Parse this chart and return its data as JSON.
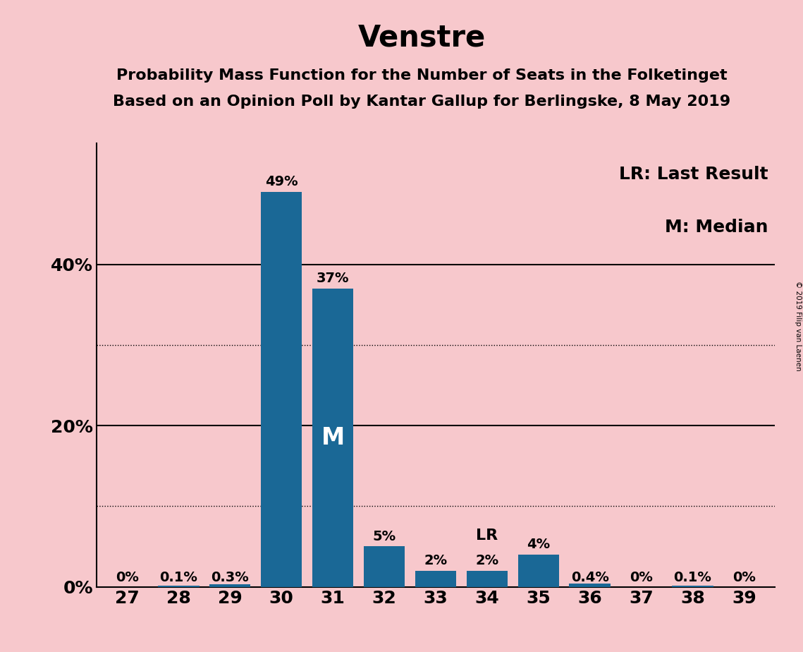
{
  "title": "Venstre",
  "subtitle1": "Probability Mass Function for the Number of Seats in the Folketinget",
  "subtitle2": "Based on an Opinion Poll by Kantar Gallup for Berlingske, 8 May 2019",
  "categories": [
    27,
    28,
    29,
    30,
    31,
    32,
    33,
    34,
    35,
    36,
    37,
    38,
    39
  ],
  "values": [
    0.0,
    0.1,
    0.3,
    49.0,
    37.0,
    5.0,
    2.0,
    2.0,
    4.0,
    0.4,
    0.0,
    0.1,
    0.0
  ],
  "labels": [
    "0%",
    "0.1%",
    "0.3%",
    "49%",
    "37%",
    "5%",
    "2%",
    "2%",
    "4%",
    "0.4%",
    "0%",
    "0.1%",
    "0%"
  ],
  "bar_color": "#1a6896",
  "background_color": "#f7c8cc",
  "ylim": [
    0,
    55
  ],
  "solid_yticks": [
    20,
    40
  ],
  "dotted_yticks": [
    10,
    30
  ],
  "ytick_positions": [
    0,
    20,
    40
  ],
  "ytick_labels": [
    "0%",
    "20%",
    "40%"
  ],
  "median_bar": 31,
  "last_result_bar": 34,
  "legend_text1": "LR: Last Result",
  "legend_text2": "M: Median",
  "copyright_text": "© 2019 Filip van Laenen",
  "title_fontsize": 30,
  "subtitle_fontsize": 16,
  "label_fontsize": 14,
  "tick_fontsize": 18,
  "legend_fontsize": 18,
  "median_label_color": "white",
  "median_label_fontsize": 24
}
